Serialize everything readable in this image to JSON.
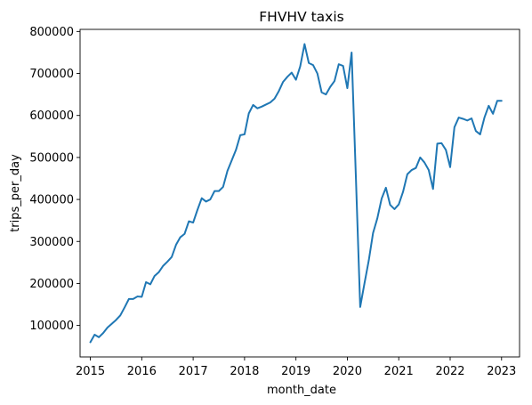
{
  "chart_data": {
    "type": "line",
    "title": "FHVHV taxis",
    "xlabel": "month_date",
    "ylabel": "trips_per_day",
    "xlim": [
      2014.8,
      2023.35
    ],
    "ylim": [
      25000,
      805000
    ],
    "xticks": [
      2015,
      2016,
      2017,
      2018,
      2019,
      2020,
      2021,
      2022,
      2023
    ],
    "xtick_labels": [
      "2015",
      "2016",
      "2017",
      "2018",
      "2019",
      "2020",
      "2021",
      "2022",
      "2023"
    ],
    "yticks": [
      100000,
      200000,
      300000,
      400000,
      500000,
      600000,
      700000,
      800000
    ],
    "ytick_labels": [
      "100000",
      "200000",
      "300000",
      "400000",
      "500000",
      "600000",
      "700000",
      "800000"
    ],
    "grid": false,
    "legend": "none",
    "color": "#1f77b4",
    "series": [
      {
        "x": [
          2015.0,
          2015.083,
          2015.167,
          2015.25,
          2015.333,
          2015.417,
          2015.5,
          2015.583,
          2015.667,
          2015.75,
          2015.833,
          2015.917,
          2016.0,
          2016.083,
          2016.167,
          2016.25,
          2016.333,
          2016.417,
          2016.5,
          2016.583,
          2016.667,
          2016.75,
          2016.833,
          2016.917,
          2017.0,
          2017.083,
          2017.167,
          2017.25,
          2017.333,
          2017.417,
          2017.5,
          2017.583,
          2017.667,
          2017.75,
          2017.833,
          2017.917,
          2018.0,
          2018.083,
          2018.167,
          2018.25,
          2018.333,
          2018.417,
          2018.5,
          2018.583,
          2018.667,
          2018.75,
          2018.833,
          2018.917,
          2019.0,
          2019.083,
          2019.167,
          2019.25,
          2019.333,
          2019.417,
          2019.5,
          2019.583,
          2019.667,
          2019.75,
          2019.833,
          2019.917,
          2020.0,
          2020.083,
          2020.167,
          2020.25,
          2020.333,
          2020.417,
          2020.5,
          2020.583,
          2020.667,
          2020.75,
          2020.833,
          2020.917,
          2021.0,
          2021.083,
          2021.167,
          2021.25,
          2021.333,
          2021.417,
          2021.5,
          2021.583,
          2021.667,
          2021.75,
          2021.833,
          2021.917,
          2022.0,
          2022.083,
          2022.167,
          2022.25,
          2022.333,
          2022.417,
          2022.5,
          2022.583,
          2022.667,
          2022.75,
          2022.833,
          2022.917,
          2023.0
        ],
        "y": [
          60000,
          78000,
          72000,
          82000,
          95000,
          104000,
          113000,
          124000,
          143000,
          163000,
          163000,
          169000,
          168000,
          203000,
          198000,
          218000,
          227000,
          242000,
          252000,
          263000,
          292000,
          310000,
          318000,
          348000,
          345000,
          375000,
          403000,
          395000,
          400000,
          420000,
          420000,
          430000,
          468000,
          493000,
          518000,
          553000,
          555000,
          605000,
          625000,
          617000,
          621000,
          626000,
          631000,
          640000,
          658000,
          680000,
          692000,
          702000,
          685000,
          717000,
          770000,
          725000,
          720000,
          700000,
          655000,
          650000,
          668000,
          682000,
          722000,
          718000,
          665000,
          750000,
          450000,
          144000,
          200000,
          255000,
          320000,
          355000,
          402000,
          428000,
          387000,
          377000,
          388000,
          418000,
          460000,
          470000,
          475000,
          500000,
          488000,
          470000,
          425000,
          533000,
          534000,
          518000,
          477000,
          572000,
          595000,
          592000,
          588000,
          593000,
          563000,
          555000,
          595000,
          623000,
          604000,
          635000,
          635000
        ]
      }
    ]
  }
}
